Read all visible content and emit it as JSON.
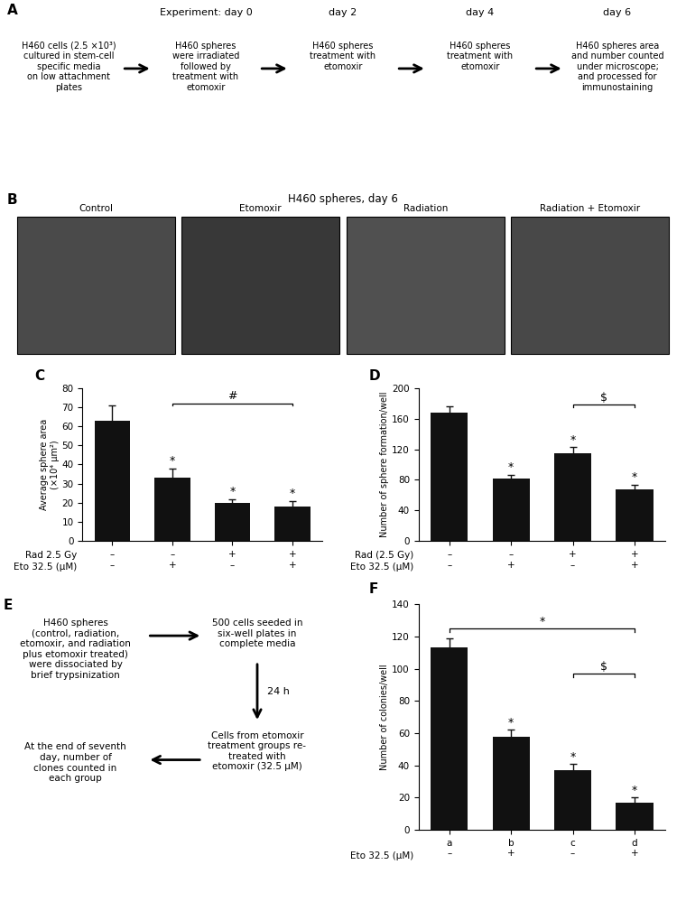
{
  "chart_data": [
    {
      "type": "timeline",
      "title": "A",
      "categories": [
        null,
        "Experiment: day 0",
        "day 2",
        "day 4",
        "day 6"
      ],
      "annotations": [
        "H460 cells (2.5 ×10³)\ncultured in stem-cell\nspecific media\non low attachment\nplates",
        "H460 spheres\nwere irradiated\nfollowed by\ntreatment with\netomoxir",
        "H460 spheres\ntreatment with\netomoxir",
        "H460 spheres\ntreatment with\netomoxir",
        "H460 spheres area\nand number counted\nunder microscope;\nand processed for\nimmunostaining"
      ]
    },
    {
      "type": "images",
      "title": "B",
      "subtitle": "H460 spheres, day 6",
      "categories": [
        "Control",
        "Etomoxir",
        "Radiation",
        "Radiation + Etomoxir"
      ],
      "colors": [
        "#4a4a4a",
        "#383838",
        "#505050",
        "#484848"
      ]
    },
    {
      "type": "bar",
      "title": "C",
      "categories": [
        "–\n–",
        "–\n+",
        "+\n–",
        "+\n+"
      ],
      "row_labels": [
        "Rad 2.5 Gy",
        "Eto 32.5 (μM)"
      ],
      "values": [
        63,
        33,
        20,
        18
      ],
      "errors": [
        8,
        5,
        2,
        3
      ],
      "ylabel": "Average sphere area\n(×10⁴ μm²)",
      "ylim": [
        0,
        80
      ],
      "yticks": [
        0,
        10,
        20,
        30,
        40,
        50,
        60,
        70,
        80
      ],
      "color": "#111111",
      "significance": [
        null,
        "*",
        "*",
        "*"
      ],
      "brackets": [
        {
          "from": 1,
          "to": 3,
          "y": 72,
          "label": "#"
        }
      ]
    },
    {
      "type": "bar",
      "title": "D",
      "categories": [
        "–\n–",
        "–\n+",
        "+\n–",
        "+\n+"
      ],
      "row_labels": [
        "Rad (2.5 Gy)",
        "Eto 32.5 (μM)"
      ],
      "values": [
        168,
        82,
        115,
        68
      ],
      "errors": [
        8,
        5,
        8,
        6
      ],
      "ylabel": "Number of sphere formation/well",
      "ylim": [
        0,
        200
      ],
      "yticks": [
        0,
        40,
        80,
        120,
        160,
        200
      ],
      "color": "#111111",
      "significance": [
        null,
        "*",
        "*",
        "*"
      ],
      "brackets": [
        {
          "from": 2,
          "to": 3,
          "y": 178,
          "label": "$"
        }
      ]
    },
    {
      "type": "flow",
      "title": "E",
      "annotations": [
        "H460 spheres\n(control, radiation,\netomoxir, and radiation\nplus etomoxir treated)\nwere dissociated by\nbrief trypsinization",
        "500 cells seeded in\nsix-well plates in\ncomplete media",
        "24 h",
        "Cells from etomoxir\ntreatment groups re-\ntreated with\netomoxir (32.5 μM)",
        "At the end of seventh\nday, number of\nclones counted in\neach group"
      ]
    },
    {
      "type": "bar",
      "title": "F",
      "categories": [
        "a\n–",
        "b\n+",
        "c\n–",
        "d\n+"
      ],
      "row_labels": [
        "Eto 32.5 (μM)"
      ],
      "values": [
        113,
        58,
        37,
        17
      ],
      "errors": [
        6,
        4,
        4,
        3
      ],
      "ylabel": "Number of colonies/well",
      "ylim": [
        0,
        140
      ],
      "yticks": [
        0,
        20,
        40,
        60,
        80,
        100,
        120,
        140
      ],
      "color": "#111111",
      "significance": [
        null,
        "*",
        "*",
        "*"
      ],
      "brackets": [
        {
          "from": 0,
          "to": 3,
          "y": 125,
          "label": "*"
        },
        {
          "from": 2,
          "to": 3,
          "y": 97,
          "label": "$"
        }
      ]
    }
  ]
}
